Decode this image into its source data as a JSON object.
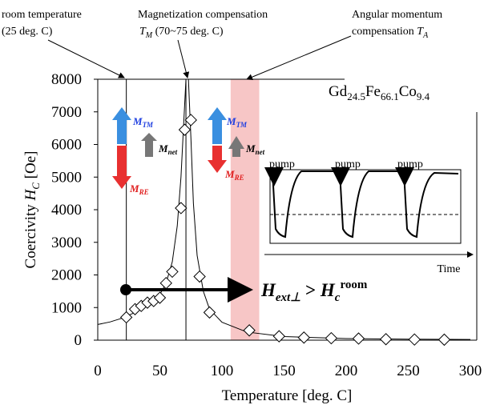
{
  "chart_data": {
    "type": "scatter",
    "x_label": "Temperature [deg. C]",
    "y_label": [
      "Coercivity ",
      "H",
      "C",
      " [Oe]"
    ],
    "xlim": [
      0,
      300
    ],
    "ylim": [
      0,
      8000
    ],
    "xticks": [
      0,
      50,
      100,
      150,
      200,
      250,
      300
    ],
    "yticks": [
      0,
      1000,
      2000,
      3000,
      4000,
      5000,
      6000,
      7000,
      8000
    ],
    "points": {
      "color": "#000000",
      "x": [
        23,
        30,
        35,
        40,
        45,
        50,
        55,
        60,
        67,
        70,
        75,
        82,
        90,
        122,
        146,
        166,
        188,
        210,
        232,
        255,
        279
      ],
      "y": [
        700,
        950,
        1050,
        1150,
        1200,
        1300,
        1750,
        2100,
        4050,
        6450,
        6750,
        1950,
        850,
        300,
        120,
        80,
        60,
        50,
        30,
        20,
        15
      ]
    },
    "fit": {
      "color": "#000000",
      "x": [
        0,
        10,
        20,
        30,
        40,
        50,
        55,
        60,
        64,
        67,
        69,
        71,
        73,
        75,
        77,
        80,
        85,
        90,
        100,
        120,
        150,
        200,
        250,
        300
      ],
      "y": [
        480,
        560,
        680,
        850,
        1050,
        1400,
        1750,
        2400,
        3500,
        5000,
        6500,
        8000,
        8000,
        6200,
        4200,
        2600,
        1500,
        950,
        550,
        250,
        110,
        50,
        30,
        20
      ]
    },
    "room_line_x": 23,
    "tm_line_x": 71,
    "ta_band": [
      107,
      130
    ],
    "band_color": "#f7c6c6",
    "annotations": {
      "room": [
        "room temperature",
        "(25 deg. C)"
      ],
      "tm": [
        "Magnetization compensation",
        "T",
        "M",
        " (70~75 deg. C)"
      ],
      "ta": [
        "Angular momentum",
        "compensation ",
        "T",
        "A"
      ],
      "formula": [
        "Gd",
        "24.5",
        "Fe",
        "66.1",
        "Co",
        "9.4"
      ],
      "moments": {
        "tm": [
          "M",
          "TM"
        ],
        "net": [
          "M",
          "net"
        ],
        "re": [
          "M",
          "RE"
        ]
      },
      "pump": "pump",
      "time": "Time",
      "field": [
        "H",
        "ext⊥",
        " > ",
        "H",
        "c",
        "room"
      ]
    }
  }
}
